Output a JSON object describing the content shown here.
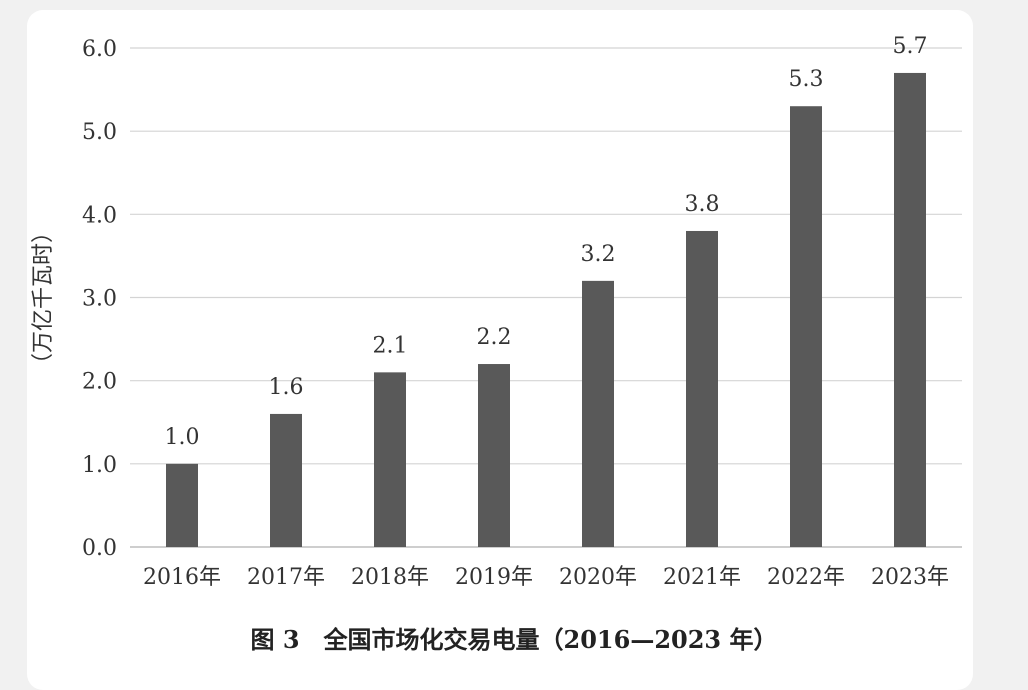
{
  "caption": "图 3　全国市场化交易电量（2016—2023 年）",
  "colors": {
    "bar": "#595959",
    "grid": "#d4d4d4",
    "text": "#333333"
  },
  "chart_data": {
    "type": "bar",
    "title": "图 3　全国市场化交易电量（2016—2023 年）",
    "ylabel": "（万亿千瓦时）",
    "xlabel": "",
    "categories": [
      "2016年",
      "2017年",
      "2018年",
      "2019年",
      "2020年",
      "2021年",
      "2022年",
      "2023年"
    ],
    "values": [
      1.0,
      1.6,
      2.1,
      2.2,
      3.2,
      3.8,
      5.3,
      5.7
    ],
    "value_labels": [
      "1.0",
      "1.6",
      "2.1",
      "2.2",
      "3.2",
      "3.8",
      "5.3",
      "5.7"
    ],
    "yticks": [
      "0.0",
      "1.0",
      "2.0",
      "3.0",
      "4.0",
      "5.0",
      "6.0"
    ],
    "ylim": [
      0,
      6
    ],
    "grid": true,
    "legend": "none"
  }
}
